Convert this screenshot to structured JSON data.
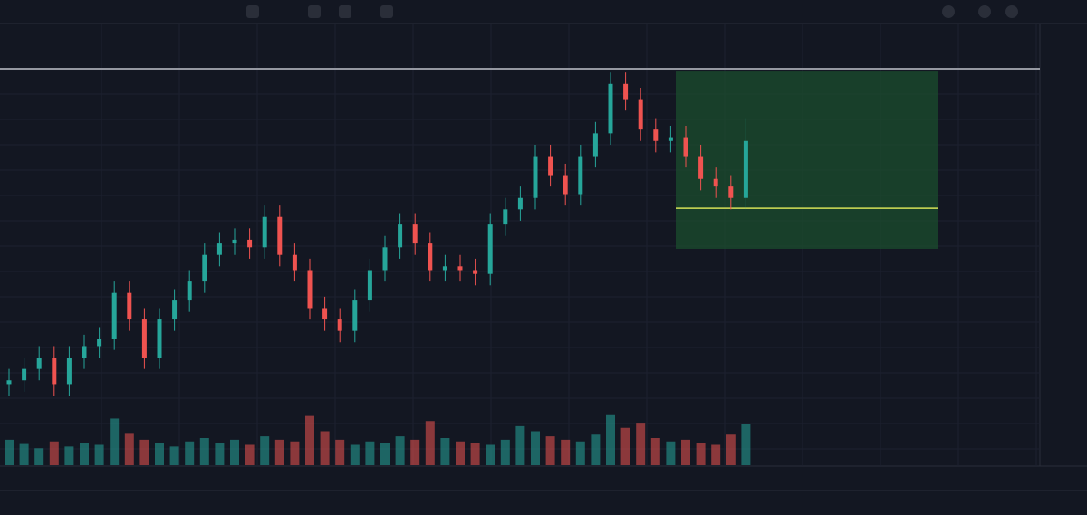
{
  "chart_data": {
    "type": "candlestick",
    "ylim": [
      0,
      101
    ],
    "open": [
      18,
      19,
      22,
      25,
      18,
      25,
      28,
      30,
      42,
      35,
      25,
      35,
      40,
      45,
      52,
      55,
      56,
      54,
      62,
      52,
      48,
      38,
      35,
      32,
      40,
      48,
      54,
      60,
      55,
      48,
      49,
      48,
      47,
      60,
      64,
      67,
      78,
      73,
      68,
      78,
      84,
      97,
      93,
      85,
      82,
      83,
      78,
      72,
      70,
      67
    ],
    "high": [
      22,
      25,
      28,
      28,
      28,
      31,
      33,
      45,
      45,
      38,
      38,
      43,
      48,
      55,
      58,
      59,
      59,
      65,
      65,
      55,
      51,
      41,
      38,
      43,
      51,
      57,
      63,
      63,
      58,
      52,
      52,
      51,
      63,
      67,
      70,
      81,
      81,
      76,
      81,
      87,
      100,
      100,
      96,
      88,
      86,
      86,
      81,
      75,
      73,
      88
    ],
    "low": [
      15,
      16,
      19,
      15,
      15,
      22,
      25,
      27,
      32,
      22,
      22,
      32,
      37,
      42,
      49,
      52,
      51,
      51,
      49,
      45,
      35,
      32,
      29,
      29,
      37,
      45,
      51,
      52,
      45,
      45,
      45,
      44,
      44,
      57,
      61,
      64,
      70,
      65,
      65,
      75,
      81,
      90,
      82,
      79,
      79,
      75,
      69,
      67,
      64,
      64
    ],
    "close": [
      19,
      22,
      25,
      18,
      25,
      28,
      30,
      42,
      35,
      25,
      35,
      40,
      45,
      52,
      55,
      56,
      54,
      62,
      52,
      48,
      38,
      35,
      32,
      40,
      48,
      54,
      60,
      55,
      48,
      49,
      48,
      47,
      60,
      64,
      67,
      78,
      73,
      68,
      78,
      84,
      97,
      93,
      85,
      82,
      83,
      78,
      72,
      70,
      67,
      82
    ],
    "volume": [
      30,
      25,
      20,
      28,
      22,
      26,
      24,
      55,
      38,
      30,
      26,
      22,
      28,
      32,
      26,
      30,
      24,
      34,
      30,
      28,
      58,
      40,
      30,
      24,
      28,
      26,
      34,
      30,
      52,
      32,
      28,
      26,
      24,
      30,
      46,
      40,
      34,
      30,
      28,
      36,
      60,
      44,
      50,
      32,
      28,
      30,
      26,
      24,
      36,
      48
    ],
    "vlim": [
      0,
      80
    ],
    "up_color": "#26a69a",
    "down_color": "#ef5350",
    "price_line": 101,
    "position": {
      "top": 100.5,
      "entry": 64.3,
      "bottom": 53.6
    }
  }
}
